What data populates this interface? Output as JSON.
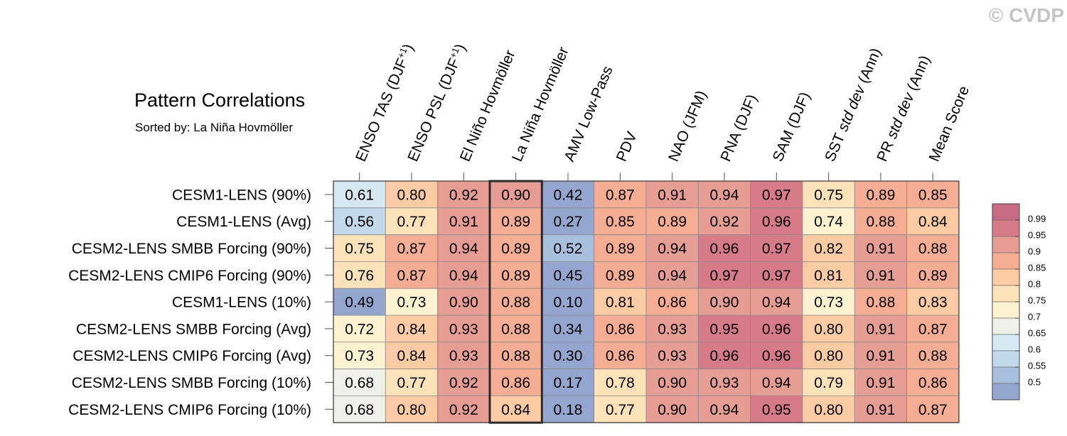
{
  "title": "Pattern Correlations",
  "subtitle": "Sorted by: La Niña Hovmöller",
  "copyright": "© CVDP",
  "chart_data": {
    "type": "heatmap",
    "highlight_column": "La Niña Hovmöller",
    "columns": [
      [
        "ENSO TAS (DJF",
        "+1",
        ")"
      ],
      [
        "ENSO PSL (DJF",
        "+1",
        ")"
      ],
      [
        "El Niño Hovmöller"
      ],
      [
        "La Niña Hovmöller"
      ],
      [
        "AMV Low-Pass"
      ],
      [
        "PDV"
      ],
      [
        "NAO (JFM)"
      ],
      [
        "PNA (DJF)"
      ],
      [
        "SAM (DJF)"
      ],
      [
        "SST ",
        "std dev",
        " (Ann)"
      ],
      [
        "PR ",
        "std dev",
        " (Ann)"
      ],
      [
        "Mean Score"
      ]
    ],
    "rows": [
      {
        "name": "CESM1-LENS (90%)",
        "values": [
          0.61,
          0.8,
          0.92,
          0.9,
          0.42,
          0.87,
          0.91,
          0.94,
          0.97,
          0.75,
          0.89,
          0.85
        ]
      },
      {
        "name": "CESM1-LENS (Avg)",
        "values": [
          0.56,
          0.77,
          0.91,
          0.89,
          0.27,
          0.85,
          0.89,
          0.92,
          0.96,
          0.74,
          0.88,
          0.84
        ]
      },
      {
        "name": "CESM2-LENS SMBB Forcing (90%)",
        "values": [
          0.75,
          0.87,
          0.94,
          0.89,
          0.52,
          0.89,
          0.94,
          0.96,
          0.97,
          0.82,
          0.91,
          0.88
        ]
      },
      {
        "name": "CESM2-LENS CMIP6 Forcing (90%)",
        "values": [
          0.76,
          0.87,
          0.94,
          0.89,
          0.45,
          0.89,
          0.94,
          0.97,
          0.97,
          0.81,
          0.91,
          0.89
        ]
      },
      {
        "name": "CESM1-LENS (10%)",
        "values": [
          0.49,
          0.73,
          0.9,
          0.88,
          0.1,
          0.81,
          0.86,
          0.9,
          0.94,
          0.73,
          0.88,
          0.83
        ]
      },
      {
        "name": "CESM2-LENS SMBB Forcing (Avg)",
        "values": [
          0.72,
          0.84,
          0.93,
          0.88,
          0.34,
          0.86,
          0.93,
          0.95,
          0.96,
          0.8,
          0.91,
          0.87
        ]
      },
      {
        "name": "CESM2-LENS CMIP6 Forcing (Avg)",
        "values": [
          0.73,
          0.84,
          0.93,
          0.88,
          0.3,
          0.86,
          0.93,
          0.96,
          0.96,
          0.8,
          0.91,
          0.88
        ]
      },
      {
        "name": "CESM2-LENS SMBB Forcing (10%)",
        "values": [
          0.68,
          0.77,
          0.92,
          0.86,
          0.17,
          0.78,
          0.9,
          0.93,
          0.94,
          0.79,
          0.91,
          0.86
        ]
      },
      {
        "name": "CESM2-LENS CMIP6 Forcing (10%)",
        "values": [
          0.68,
          0.8,
          0.92,
          0.84,
          0.18,
          0.77,
          0.9,
          0.94,
          0.95,
          0.8,
          0.91,
          0.87
        ]
      }
    ],
    "colorbar": {
      "labels": [
        "0.99",
        "0.95",
        "0.9",
        "0.85",
        "0.8",
        "0.75",
        "0.7",
        "0.65",
        "0.6",
        "0.55",
        "0.5"
      ],
      "thresholds": [
        0.5,
        0.55,
        0.6,
        0.65,
        0.7,
        0.75,
        0.8,
        0.85,
        0.9,
        0.95,
        0.99
      ],
      "colors": [
        "#94a5cf",
        "#a8bfdd",
        "#c1d9ea",
        "#d6e9f2",
        "#eef0ea",
        "#fdf3d0",
        "#fce2b8",
        "#fbcca3",
        "#f5ad93",
        "#e69d93",
        "#d87b88",
        "#c96a84"
      ]
    }
  }
}
